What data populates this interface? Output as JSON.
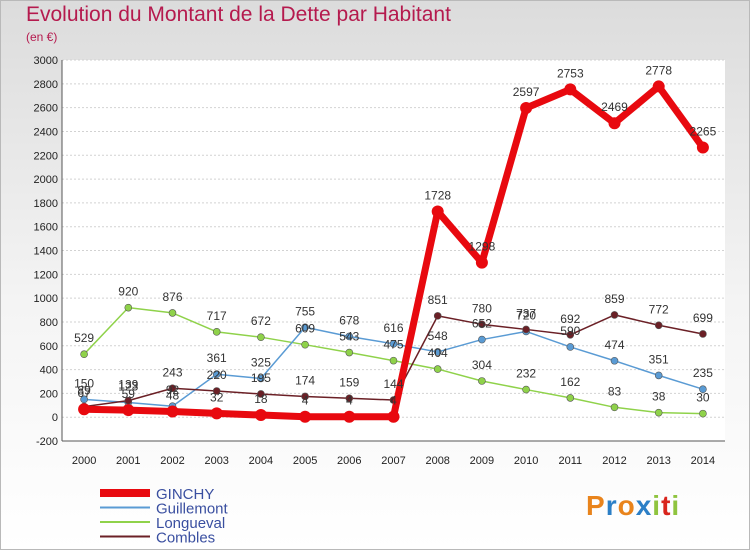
{
  "chart_data": {
    "type": "line",
    "title": "Evolution du Montant de la Dette par Habitant",
    "subtitle": "(en €)",
    "categories": [
      "2000",
      "2001",
      "2002",
      "2003",
      "2004",
      "2005",
      "2006",
      "2007",
      "2008",
      "2009",
      "2010",
      "2011",
      "2012",
      "2013",
      "2014"
    ],
    "ylim": [
      -200,
      3000
    ],
    "yticks": [
      -200,
      0,
      200,
      400,
      600,
      800,
      1000,
      1200,
      1400,
      1600,
      1800,
      2000,
      2200,
      2400,
      2600,
      2800,
      3000
    ],
    "grid": true,
    "legend_position": "bottom-left",
    "series": [
      {
        "name": "GINCHY",
        "color": "#e8090f",
        "values": [
          67,
          59,
          48,
          32,
          18,
          4,
          4,
          4,
          1728,
          1298,
          2597,
          2753,
          2469,
          2778,
          2265
        ]
      },
      {
        "name": "Guillemont",
        "color": "#5a9bd4",
        "values": [
          150,
          123,
          92,
          361,
          325,
          755,
          678,
          616,
          548,
          652,
          720,
          590,
          474,
          351,
          235
        ]
      },
      {
        "name": "Longueval",
        "color": "#8fd24a",
        "values": [
          529,
          920,
          876,
          717,
          672,
          609,
          543,
          475,
          404,
          304,
          232,
          162,
          83,
          38,
          30
        ]
      },
      {
        "name": "Combles",
        "color": "#6b2026",
        "values": [
          89,
          139,
          243,
          220,
          195,
          174,
          159,
          144,
          851,
          780,
          737,
          692,
          859,
          772,
          699
        ]
      }
    ]
  },
  "brand": {
    "letters": [
      "P",
      "r",
      "o",
      "x",
      "i",
      "t",
      "i"
    ],
    "colors": [
      "#e9841c",
      "#2c7fc6",
      "#e9841c",
      "#2c7fc6",
      "#8fc43f",
      "#d9251d",
      "#8fc43f"
    ]
  }
}
